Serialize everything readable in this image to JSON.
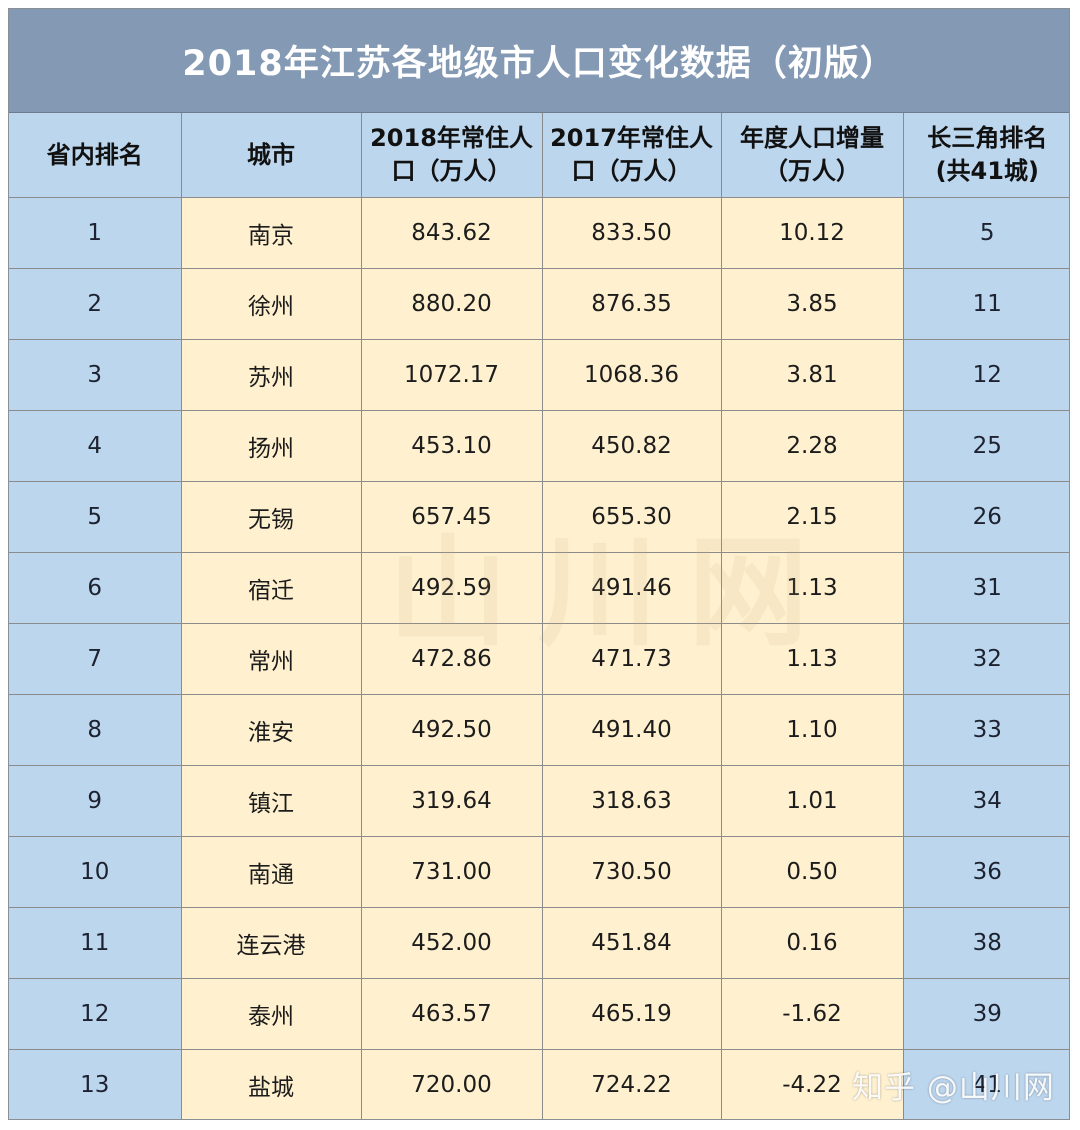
{
  "title": "2018年江苏各地级市人口变化数据（初版）",
  "colors": {
    "title_band": "#8399b4",
    "header_bg": "#bcd6ee",
    "blue_column": "#bcd6ee",
    "cream_column": "#fff1cf",
    "border": "#8b8b8b"
  },
  "table": {
    "headers": [
      {
        "line1": "省内排名",
        "line2": ""
      },
      {
        "line1": "城市",
        "line2": ""
      },
      {
        "line1": "2018年常住人",
        "line2": "口（万人）"
      },
      {
        "line1": "2017年常住人",
        "line2": "口（万人）"
      },
      {
        "line1": "年度人口增量",
        "line2": "（万人）"
      },
      {
        "line1": "长三角排名",
        "line2": "(共41城)"
      }
    ],
    "rows": [
      [
        "1",
        "南京",
        "843.62",
        "833.50",
        "10.12",
        "5"
      ],
      [
        "2",
        "徐州",
        "880.20",
        "876.35",
        "3.85",
        "11"
      ],
      [
        "3",
        "苏州",
        "1072.17",
        "1068.36",
        "3.81",
        "12"
      ],
      [
        "4",
        "扬州",
        "453.10",
        "450.82",
        "2.28",
        "25"
      ],
      [
        "5",
        "无锡",
        "657.45",
        "655.30",
        "2.15",
        "26"
      ],
      [
        "6",
        "宿迁",
        "492.59",
        "491.46",
        "1.13",
        "31"
      ],
      [
        "7",
        "常州",
        "472.86",
        "471.73",
        "1.13",
        "32"
      ],
      [
        "8",
        "淮安",
        "492.50",
        "491.40",
        "1.10",
        "33"
      ],
      [
        "9",
        "镇江",
        "319.64",
        "318.63",
        "1.01",
        "34"
      ],
      [
        "10",
        "南通",
        "731.00",
        "730.50",
        "0.50",
        "36"
      ],
      [
        "11",
        "连云港",
        "452.00",
        "451.84",
        "0.16",
        "38"
      ],
      [
        "12",
        "泰州",
        "463.57",
        "465.19",
        "-1.62",
        "39"
      ],
      [
        "13",
        "盐城",
        "720.00",
        "724.22",
        "-4.22",
        "41"
      ]
    ]
  },
  "watermarks": {
    "center": "山川网",
    "corner": "知乎 @山川网"
  }
}
